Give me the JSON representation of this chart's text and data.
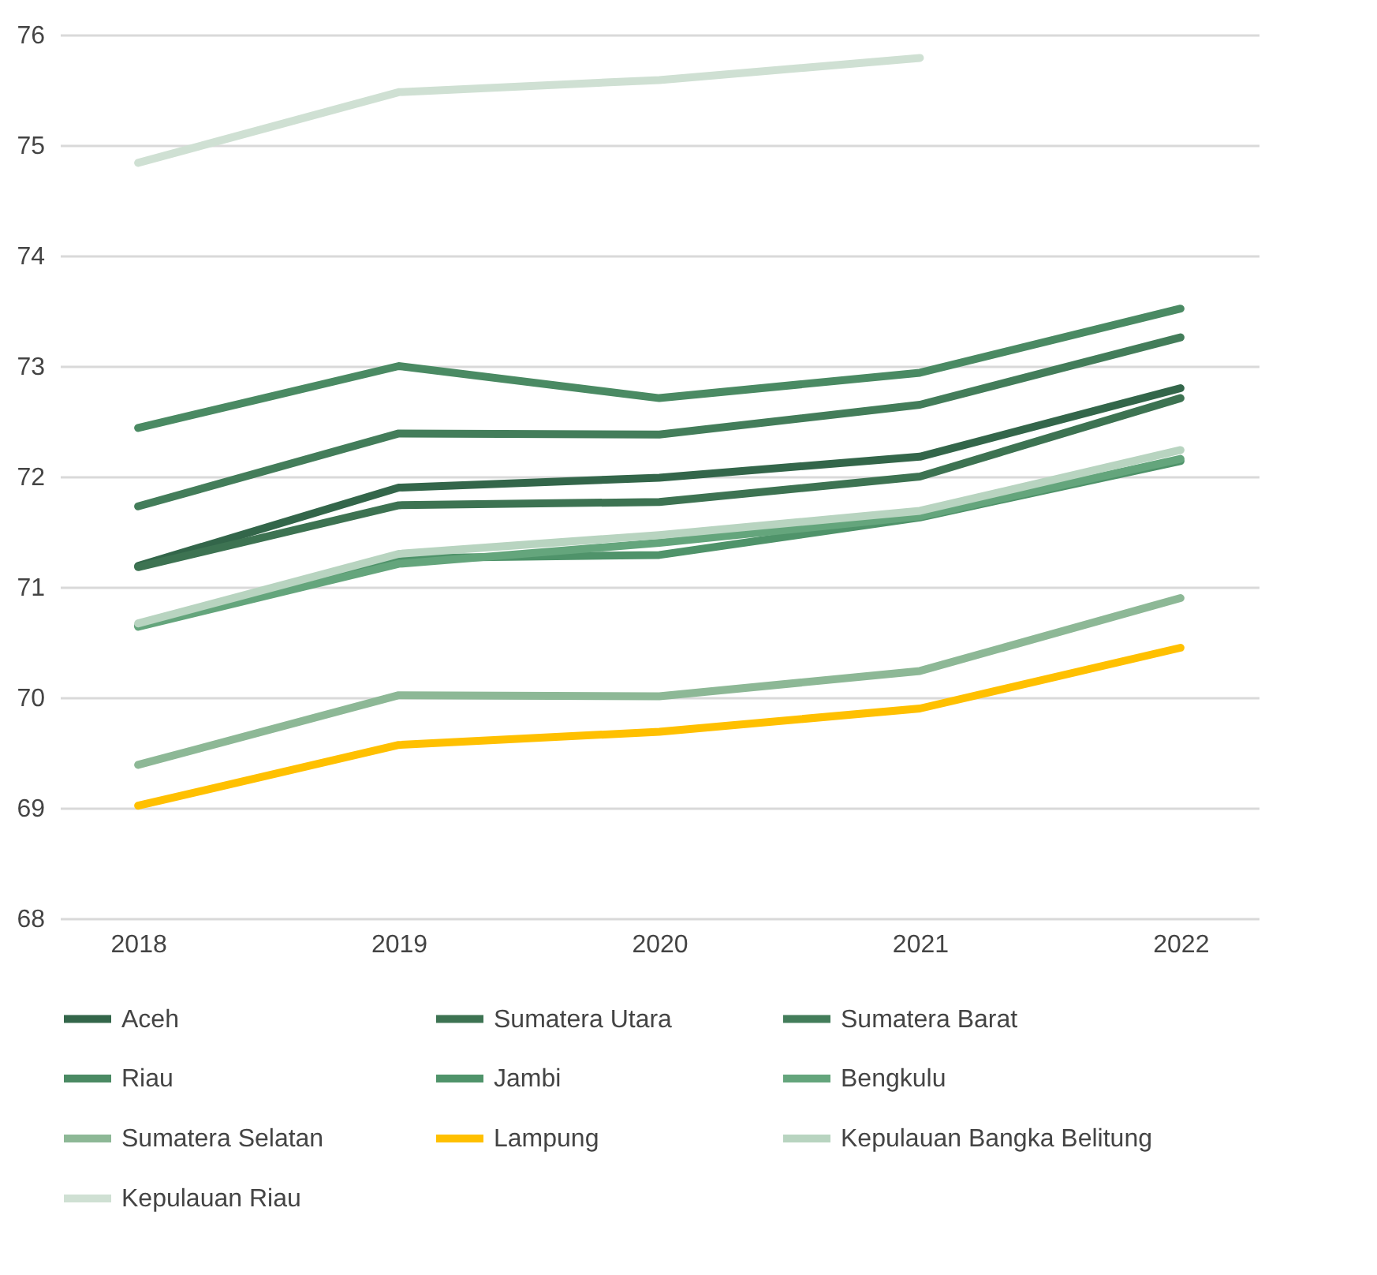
{
  "chart_data": {
    "type": "line",
    "categories": [
      "2018",
      "2019",
      "2020",
      "2021",
      "2022"
    ],
    "ylim": [
      68,
      76
    ],
    "yticks": [
      68,
      69,
      70,
      71,
      72,
      73,
      74,
      75,
      76
    ],
    "grid": "y",
    "legend": "bottom",
    "series": [
      {
        "name": "Aceh",
        "color": "#33664a",
        "values": [
          71.19,
          71.9,
          71.99,
          72.18,
          72.8
        ]
      },
      {
        "name": "Sumatera Utara",
        "color": "#3d7352",
        "values": [
          71.18,
          71.74,
          71.77,
          72.0,
          72.71
        ]
      },
      {
        "name": "Sumatera Barat",
        "color": "#437d5a",
        "values": [
          71.73,
          72.39,
          72.38,
          72.65,
          73.26
        ]
      },
      {
        "name": "Riau",
        "color": "#4a8a63",
        "values": [
          72.44,
          73.0,
          72.71,
          72.94,
          73.52
        ]
      },
      {
        "name": "Jambi",
        "color": "#4f936a",
        "values": [
          70.65,
          71.26,
          71.29,
          71.63,
          72.14
        ]
      },
      {
        "name": "Bengkulu",
        "color": "#64a57c",
        "values": [
          70.64,
          71.21,
          71.4,
          71.64,
          72.16
        ]
      },
      {
        "name": "Sumatera Selatan",
        "color": "#8db896",
        "values": [
          69.39,
          70.02,
          70.01,
          70.24,
          70.9
        ]
      },
      {
        "name": "Lampung",
        "color": "#ffc000",
        "values": [
          69.02,
          69.57,
          69.69,
          69.9,
          70.45
        ]
      },
      {
        "name": "Kepulauan Bangka Belitung",
        "color": "#b8d4c0",
        "values": [
          70.67,
          71.3,
          71.47,
          71.69,
          72.24
        ]
      },
      {
        "name": "Kepulauan Riau",
        "color": "#cfe0d3",
        "values": [
          74.84,
          75.48,
          75.59,
          75.79,
          null
        ]
      }
    ]
  }
}
